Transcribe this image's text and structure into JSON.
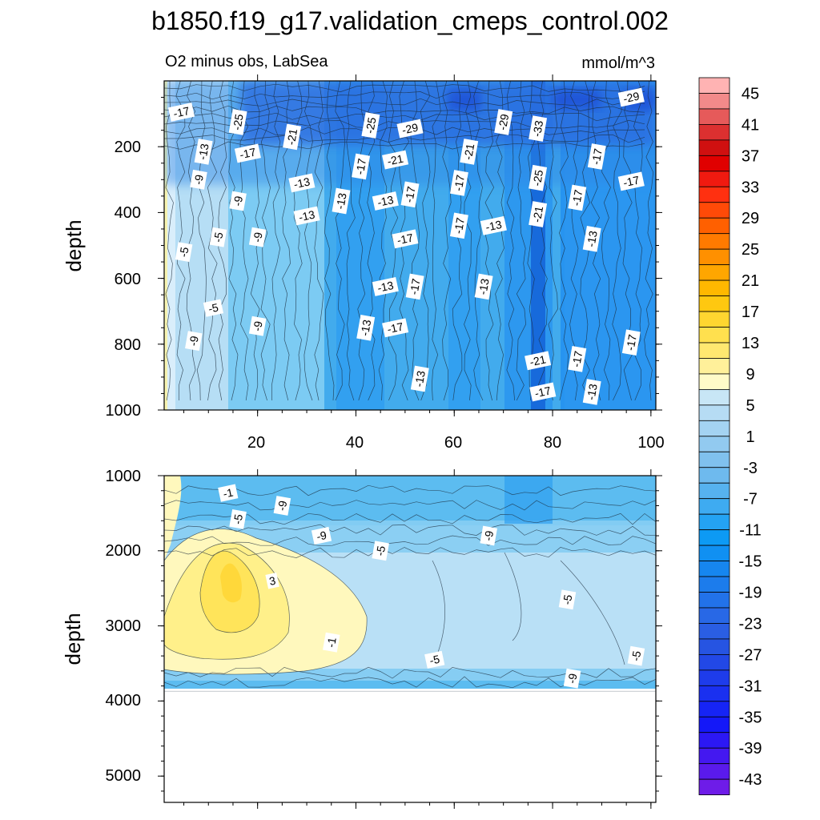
{
  "chart_data": {
    "type": "contour",
    "title": "b1850.f19_g17.validation_cmeps_control.002",
    "left_subtitle": "O2 minus obs, LabSea",
    "right_subtitle": "mmol/m^3",
    "panels": [
      {
        "name": "upper",
        "ylabel": "depth",
        "ylim": [
          0,
          1000
        ],
        "xlim": [
          1,
          101
        ],
        "yticks": [
          "200",
          "400",
          "600",
          "800",
          "1000"
        ],
        "xticks": [
          "20",
          "40",
          "60",
          "80",
          "100"
        ],
        "contour_labels": [
          {
            "text": "-17",
            "x": 4.5,
            "y": 95
          },
          {
            "text": "-25",
            "x": 16,
            "y": 125
          },
          {
            "text": "-13",
            "x": 9,
            "y": 215
          },
          {
            "text": "-17",
            "x": 18,
            "y": 220
          },
          {
            "text": "-21",
            "x": 27,
            "y": 170
          },
          {
            "text": "-25",
            "x": 43,
            "y": 135
          },
          {
            "text": "-29",
            "x": 51,
            "y": 145
          },
          {
            "text": "-29",
            "x": 70,
            "y": 125
          },
          {
            "text": "-33",
            "x": 77,
            "y": 145
          },
          {
            "text": "-29",
            "x": 96,
            "y": 50
          },
          {
            "text": "-21",
            "x": 63,
            "y": 215
          },
          {
            "text": "-17",
            "x": 89,
            "y": 230
          },
          {
            "text": "-21",
            "x": 48,
            "y": 240
          },
          {
            "text": "-17",
            "x": 41,
            "y": 260
          },
          {
            "text": "-9",
            "x": 8,
            "y": 300
          },
          {
            "text": "-13",
            "x": 29,
            "y": 310
          },
          {
            "text": "-17",
            "x": 61,
            "y": 310
          },
          {
            "text": "-25",
            "x": 77,
            "y": 295
          },
          {
            "text": "-17",
            "x": 96,
            "y": 305
          },
          {
            "text": "-9",
            "x": 16,
            "y": 365
          },
          {
            "text": "-13",
            "x": 37,
            "y": 365
          },
          {
            "text": "-13",
            "x": 46,
            "y": 365
          },
          {
            "text": "-17",
            "x": 51,
            "y": 345
          },
          {
            "text": "-17",
            "x": 85,
            "y": 355
          },
          {
            "text": "-13",
            "x": 30,
            "y": 410
          },
          {
            "text": "-21",
            "x": 77,
            "y": 405
          },
          {
            "text": "-17",
            "x": 61,
            "y": 440
          },
          {
            "text": "-13",
            "x": 68,
            "y": 440
          },
          {
            "text": "-5",
            "x": 12,
            "y": 475
          },
          {
            "text": "-9",
            "x": 20,
            "y": 475
          },
          {
            "text": "-17",
            "x": 50,
            "y": 480
          },
          {
            "text": "-13",
            "x": 88,
            "y": 480
          },
          {
            "text": "-5",
            "x": 5,
            "y": 520
          },
          {
            "text": "-13",
            "x": 46,
            "y": 625
          },
          {
            "text": "-17",
            "x": 52,
            "y": 625
          },
          {
            "text": "-13",
            "x": 66,
            "y": 625
          },
          {
            "text": "-5",
            "x": 11,
            "y": 690
          },
          {
            "text": "-9",
            "x": 20,
            "y": 745
          },
          {
            "text": "-13",
            "x": 42,
            "y": 750
          },
          {
            "text": "-17",
            "x": 48,
            "y": 750
          },
          {
            "text": "-9",
            "x": 7,
            "y": 790
          },
          {
            "text": "-17",
            "x": 96,
            "y": 795
          },
          {
            "text": "-21",
            "x": 77,
            "y": 850
          },
          {
            "text": "-17",
            "x": 85,
            "y": 845
          },
          {
            "text": "-13",
            "x": 53,
            "y": 905
          },
          {
            "text": "-17",
            "x": 78,
            "y": 945
          },
          {
            "text": "-13",
            "x": 88,
            "y": 945
          }
        ]
      },
      {
        "name": "lower",
        "ylabel": "depth",
        "ylim": [
          1000,
          5350
        ],
        "xlim": [
          1,
          101
        ],
        "yticks": [
          "1000",
          "2000",
          "3000",
          "4000",
          "5000"
        ],
        "contour_labels": [
          {
            "text": "-1",
            "x": 14,
            "y": 1230
          },
          {
            "text": "-5",
            "x": 16,
            "y": 1580
          },
          {
            "text": "-9",
            "x": 25,
            "y": 1400
          },
          {
            "text": "-9",
            "x": 33,
            "y": 1800
          },
          {
            "text": "-5",
            "x": 45,
            "y": 2000
          },
          {
            "text": "-9",
            "x": 67,
            "y": 1800
          },
          {
            "text": "3",
            "x": 23,
            "y": 2400
          },
          {
            "text": "-5",
            "x": 83,
            "y": 2650
          },
          {
            "text": "-1",
            "x": 35,
            "y": 3220
          },
          {
            "text": "-5",
            "x": 56,
            "y": 3450
          },
          {
            "text": "-5",
            "x": 97,
            "y": 3400
          },
          {
            "text": "-9",
            "x": 84,
            "y": 3700
          }
        ],
        "data_bottom_depth": 3870
      }
    ],
    "colorbar": {
      "min": -45,
      "max": 47,
      "step": 2,
      "labels": [
        "45",
        "41",
        "37",
        "33",
        "29",
        "25",
        "21",
        "17",
        "13",
        "9",
        "5",
        "1",
        "-3",
        "-7",
        "-11",
        "-15",
        "-19",
        "-23",
        "-27",
        "-31",
        "-35",
        "-39",
        "-43"
      ]
    }
  }
}
